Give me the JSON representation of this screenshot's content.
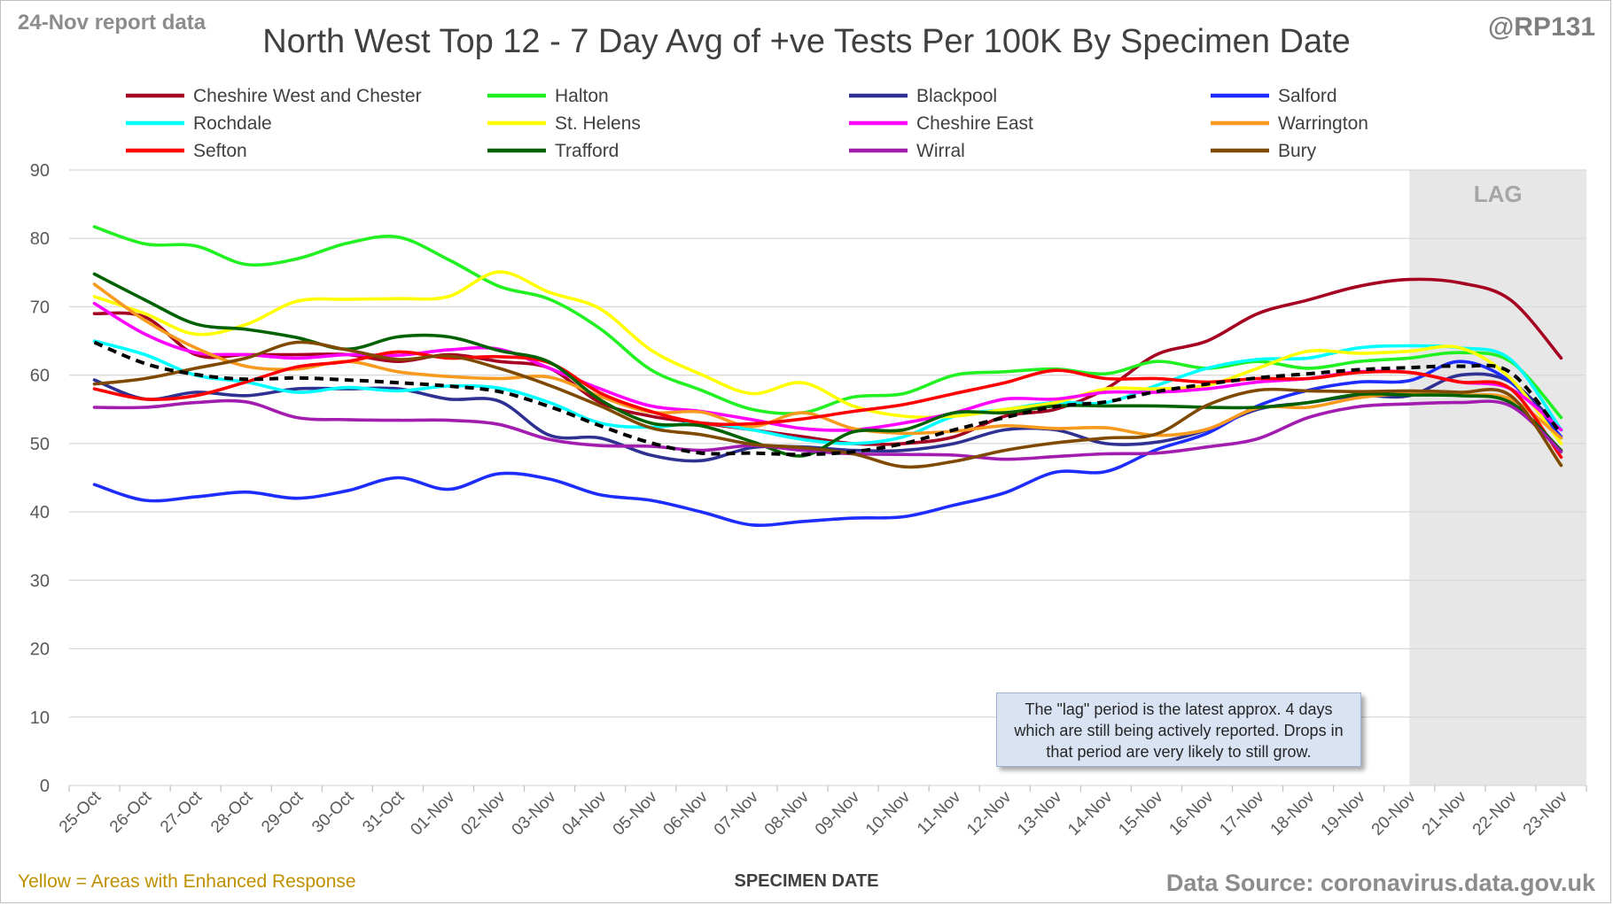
{
  "header": {
    "report_label": "24-Nov report data",
    "author_handle": "@RP131",
    "title": "North West Top 12 - 7 Day Avg of +ve Tests Per 100K By Specimen Date"
  },
  "footer": {
    "note_left": "Yellow = Areas with Enhanced Response",
    "source": "Data Source: coronavirus.data.gov.uk"
  },
  "lag_note": "The \"lag\" period is the latest approx. 4 days which are still being actively reported.  Drops in that period are very likely to still grow.",
  "chart_data": {
    "type": "line",
    "title": "North West Top 12 - 7 Day Avg of +ve Tests Per 100K By Specimen Date",
    "xlabel": "SPECIMEN DATE",
    "ylabel": "",
    "ylim": [
      0,
      90
    ],
    "yticks": [
      0,
      10,
      20,
      30,
      40,
      50,
      60,
      70,
      80,
      90
    ],
    "grid": "horizontal",
    "legend_position": "top",
    "lag_region": {
      "label": "LAG",
      "from": "20-Nov",
      "to": "23-Nov",
      "color": "#e7e7e7"
    },
    "x": [
      "25-Oct",
      "26-Oct",
      "27-Oct",
      "28-Oct",
      "29-Oct",
      "30-Oct",
      "31-Oct",
      "01-Nov",
      "02-Nov",
      "03-Nov",
      "04-Nov",
      "05-Nov",
      "06-Nov",
      "07-Nov",
      "08-Nov",
      "09-Nov",
      "10-Nov",
      "11-Nov",
      "12-Nov",
      "13-Nov",
      "14-Nov",
      "15-Nov",
      "16-Nov",
      "17-Nov",
      "18-Nov",
      "19-Nov",
      "20-Nov",
      "21-Nov",
      "22-Nov",
      "23-Nov"
    ],
    "series": [
      {
        "name": "Cheshire West and Chester",
        "color": "#a50021",
        "values": [
          69,
          68.5,
          63,
          63,
          63,
          63,
          62,
          63,
          62,
          61,
          56,
          54,
          53,
          52,
          51,
          50,
          50,
          51,
          54,
          55,
          58,
          63,
          65,
          69,
          71,
          73,
          74,
          73.5,
          71,
          62.5
        ]
      },
      {
        "name": "Halton",
        "color": "#21f021",
        "values": [
          81.7,
          79.2,
          78.9,
          76.2,
          77,
          79.3,
          80.2,
          76.9,
          73,
          71.1,
          66.8,
          60.8,
          57.8,
          55,
          54.5,
          56.8,
          57.3,
          60,
          60.5,
          60.9,
          60.2,
          62,
          61,
          62,
          61,
          62,
          62.5,
          63.3,
          62,
          53.8
        ]
      },
      {
        "name": "Blackpool",
        "color": "#2e3192",
        "values": [
          59.3,
          56.5,
          57.5,
          57,
          58,
          58,
          58,
          56.5,
          56.2,
          51.2,
          50.8,
          48.3,
          47.5,
          49.4,
          49.5,
          49,
          49,
          50,
          52,
          52,
          50,
          50.2,
          52,
          55,
          56,
          57,
          57,
          60,
          59,
          52
        ]
      },
      {
        "name": "Salford",
        "color": "#1e2dff",
        "values": [
          44,
          41.7,
          42.2,
          42.9,
          42,
          43.1,
          45,
          43.3,
          45.6,
          44.8,
          42.5,
          41.7,
          40,
          38.1,
          38.6,
          39.1,
          39.3,
          41,
          42.8,
          45.8,
          45.9,
          49.1,
          51.5,
          55.5,
          57.8,
          59,
          59.2,
          62,
          59,
          51
        ]
      },
      {
        "name": "Rochdale",
        "color": "#00ffff",
        "values": [
          65,
          63,
          60,
          59,
          57.5,
          58.2,
          57.7,
          58.4,
          58.1,
          56,
          53,
          52.4,
          53,
          52,
          50.6,
          50,
          51,
          54,
          55,
          56,
          56,
          58.5,
          61,
          62.3,
          62.5,
          64,
          64.3,
          64,
          62.3,
          52
        ]
      },
      {
        "name": "St. Helens",
        "color": "#ffff00",
        "values": [
          71.5,
          69,
          66,
          67.4,
          70.8,
          71.1,
          71.2,
          71.5,
          75.1,
          72.1,
          69.7,
          63.7,
          60.1,
          57.3,
          58.9,
          55.5,
          54,
          54,
          55,
          56,
          58,
          58,
          58.5,
          61,
          63.5,
          63.2,
          63.5,
          64,
          59.5,
          50
        ]
      },
      {
        "name": "Cheshire East",
        "color": "#ff00ff",
        "values": [
          70.5,
          66,
          63.3,
          63,
          62.5,
          63,
          62.9,
          63.7,
          63.8,
          61,
          58,
          55.5,
          54.7,
          53.5,
          52.2,
          52,
          53,
          54.5,
          56.5,
          56.5,
          57.5,
          57.5,
          58,
          59,
          59.5,
          60.5,
          60.4,
          59,
          58,
          52
        ]
      },
      {
        "name": "Warrington",
        "color": "#f79a1e",
        "values": [
          73.3,
          68,
          64,
          61.3,
          60.9,
          62,
          60.5,
          59.8,
          59.5,
          59.7,
          56.9,
          54.6,
          54.6,
          52.5,
          54.5,
          52.2,
          51.5,
          51.8,
          52.6,
          52.2,
          52.3,
          51.2,
          52.1,
          55.2,
          55.3,
          56.7,
          57.3,
          57.1,
          56.5,
          50.8
        ]
      },
      {
        "name": "Sefton",
        "color": "#ff0000",
        "values": [
          58,
          56.5,
          57,
          59,
          61.2,
          62,
          63.4,
          62.5,
          62.7,
          61.8,
          57.4,
          54.7,
          53,
          52.9,
          53.6,
          54.7,
          55.7,
          57.3,
          58.9,
          60.7,
          59.5,
          59.5,
          59,
          59.5,
          59.5,
          60.4,
          60.4,
          59,
          58,
          48
        ]
      },
      {
        "name": "Trafford",
        "color": "#006100",
        "values": [
          74.8,
          71,
          67.5,
          66.7,
          65.5,
          63.8,
          65.6,
          65.6,
          63.6,
          61.9,
          56.4,
          53,
          52.6,
          50.3,
          48.2,
          51.7,
          52,
          54.5,
          54.5,
          55.5,
          55.5,
          55.5,
          55.3,
          55.3,
          56,
          57.2,
          57.1,
          57,
          56,
          49
        ]
      },
      {
        "name": "Wirral",
        "color": "#a21caf",
        "values": [
          55.3,
          55.3,
          56,
          56.1,
          53.8,
          53.5,
          53.4,
          53.4,
          52.8,
          50.6,
          49.7,
          49.6,
          49,
          49.7,
          49,
          48.5,
          48.4,
          48.3,
          47.7,
          48.1,
          48.5,
          48.6,
          49.5,
          50.7,
          53.8,
          55.4,
          55.8,
          56,
          55.5,
          48.8
        ]
      },
      {
        "name": "Bury",
        "color": "#7f4a00",
        "values": [
          58.7,
          59.5,
          61,
          62.5,
          64.8,
          63.7,
          62.3,
          62.8,
          61,
          58.5,
          55.5,
          52.3,
          51.3,
          49.9,
          49.4,
          48.5,
          46.6,
          47.4,
          49,
          50.1,
          50.8,
          51.4,
          55.6,
          57.8,
          57.7,
          57.6,
          57.7,
          57.5,
          57,
          46.8
        ]
      }
    ],
    "average": {
      "color": "#000000",
      "dashed": true,
      "values": [
        64.8,
        61.7,
        60.1,
        59.4,
        59.6,
        59.3,
        58.9,
        58.4,
        57.6,
        55.4,
        52.6,
        50.1,
        48.6,
        48.6,
        48.4,
        48.8,
        50,
        52,
        53.8,
        55.4,
        56.1,
        57.6,
        58.7,
        59.6,
        60.2,
        60.8,
        61.1,
        61.3,
        60.4,
        51.4
      ]
    }
  }
}
